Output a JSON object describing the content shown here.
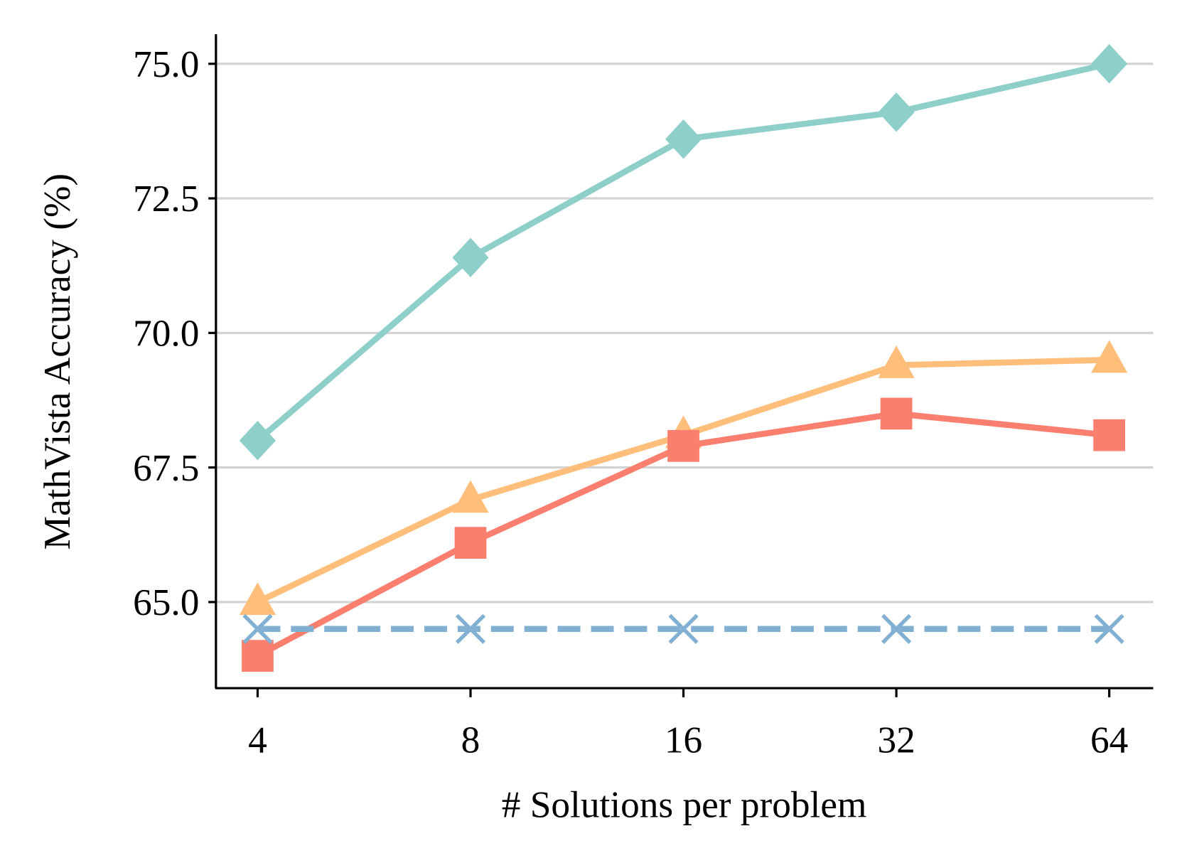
{
  "chart_data": {
    "type": "line",
    "title": "",
    "xlabel": "# Solutions per problem",
    "ylabel": "MathVista Accuracy (%)",
    "categories": [
      "4",
      "8",
      "16",
      "32",
      "64"
    ],
    "ylim": [
      63.4,
      75.55
    ],
    "yticks": [
      "65.0",
      "67.5",
      "70.0",
      "72.5",
      "75.0"
    ],
    "grid": "horizontal",
    "series": [
      {
        "values": [
          68.0,
          71.4,
          73.6,
          74.1,
          75.0
        ],
        "color": "#8ecfc9",
        "marker": "diamond",
        "dash": false
      },
      {
        "values": [
          65.0,
          66.9,
          68.1,
          69.4,
          69.5
        ],
        "color": "#ffbe7a",
        "marker": "triangle",
        "dash": false
      },
      {
        "values": [
          64.0,
          66.1,
          67.9,
          68.5,
          68.1
        ],
        "color": "#fa7f6f",
        "marker": "square",
        "dash": false
      },
      {
        "values": [
          64.5,
          64.5,
          64.5,
          64.5,
          64.5
        ],
        "color": "#82b0d2",
        "marker": "x",
        "dash": true
      }
    ]
  }
}
